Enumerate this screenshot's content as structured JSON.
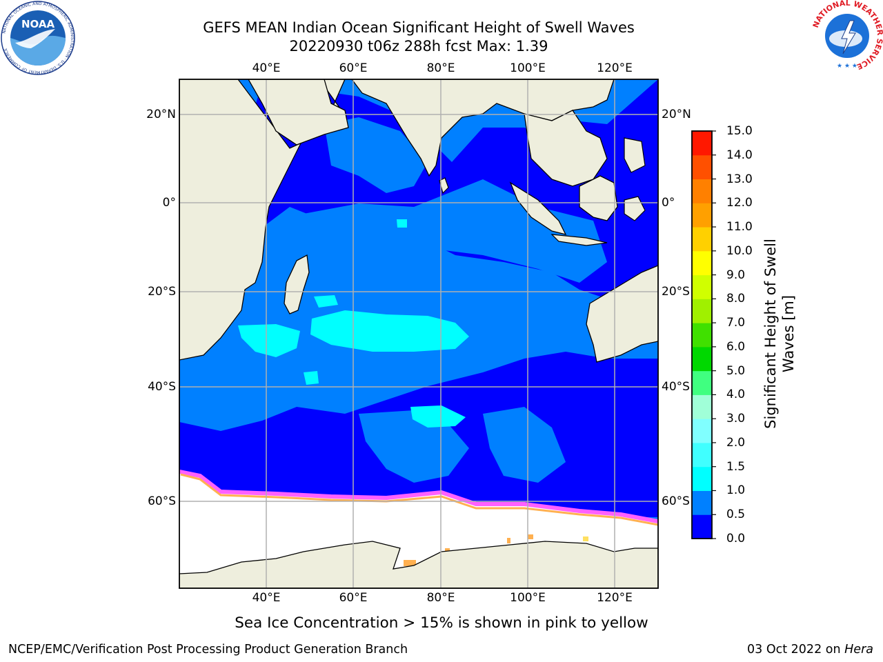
{
  "title": {
    "line1": "GEFS MEAN Indian Ocean Significant Height of Swell Waves",
    "line2": "20220930 t06z 288h fcst   Max: 1.39"
  },
  "axes": {
    "lon_ticks": [
      "40°E",
      "60°E",
      "80°E",
      "100°E",
      "120°E"
    ],
    "lat_ticks": [
      "20°N",
      "0°",
      "20°S",
      "40°S",
      "60°S"
    ]
  },
  "colorbar": {
    "label_line1": "Significant Height of Swell",
    "label_line2": "Waves [m]",
    "levels": [
      "0.0",
      "0.5",
      "1.0",
      "1.5",
      "2.0",
      "3.0",
      "4.0",
      "5.0",
      "6.0",
      "7.0",
      "8.0",
      "9.0",
      "10.0",
      "11.0",
      "12.0",
      "13.0",
      "14.0",
      "15.0"
    ],
    "colors": [
      "#0000ff",
      "#0080ff",
      "#00ffff",
      "#40ffff",
      "#80ffff",
      "#a0ffd8",
      "#40ff80",
      "#00d800",
      "#40e000",
      "#a0f000",
      "#d0ff00",
      "#ffff00",
      "#ffd000",
      "#ffa000",
      "#ff8000",
      "#ff5000",
      "#ff1800"
    ]
  },
  "map": {
    "land_color": "#eeeedd",
    "ice_color": "#ffffff",
    "ice_edge_colors": [
      "#ff60ff",
      "#ffb050",
      "#ffe060"
    ]
  },
  "caption": "Sea Ice Concentration > 15% is shown in pink to yellow",
  "footer": {
    "left": "NCEP/EMC/Verification Post Processing Product Generation Branch",
    "date": "03 Oct 2022 on ",
    "machine": "Hera"
  },
  "logos": {
    "noaa": "NOAA",
    "nws": "NATIONAL WEATHER SERVICE",
    "noaa_ring": "NATIONAL OCEANIC AND ATMOSPHERIC ADMINISTRATION · U.S. DEPARTMENT OF COMMERCE"
  }
}
